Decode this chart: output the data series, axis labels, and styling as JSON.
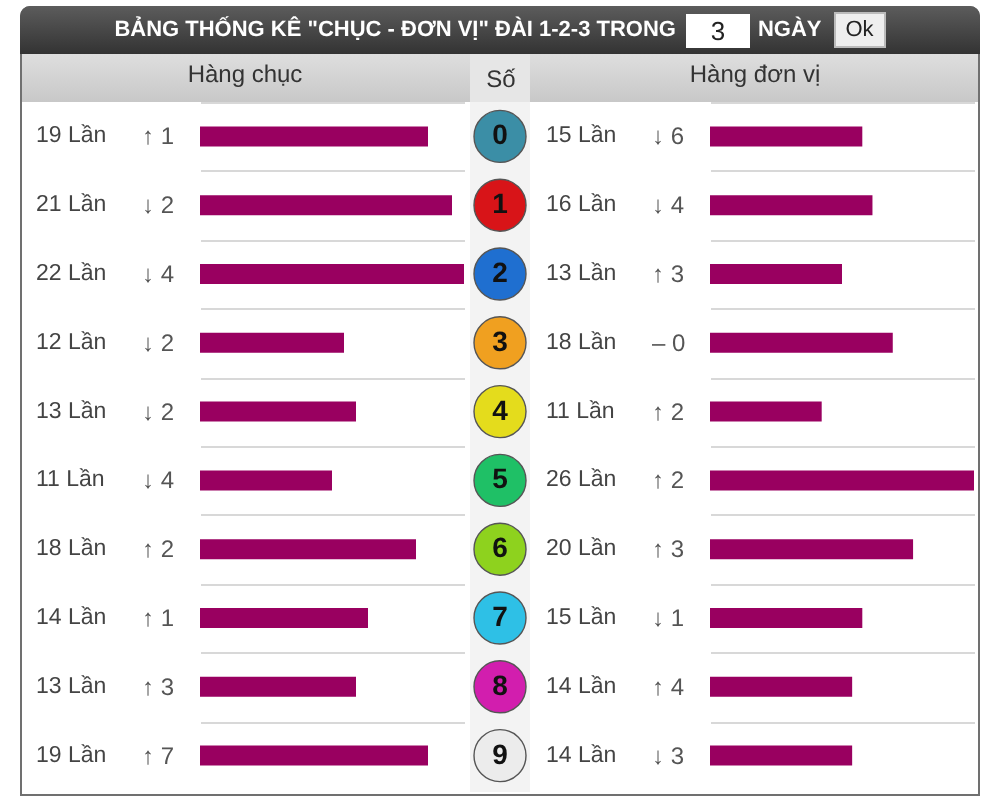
{
  "chart_data": [
    {
      "type": "other",
      "title": "BẢNG THỐNG KÊ \"CHỤC - ĐƠN VỊ\" ĐÀI 1-2-3 TRONG",
      "annotations": [
        "3",
        "NGÀY",
        "Ok"
      ]
    },
    {
      "type": "bar",
      "orientation": "horizontal",
      "title": "Hàng chục",
      "categories": [
        "0",
        "1",
        "2",
        "3",
        "4",
        "5",
        "6",
        "7",
        "8",
        "9"
      ],
      "values": [
        19,
        21,
        22,
        12,
        13,
        11,
        18,
        14,
        13,
        19
      ],
      "value_labels": [
        "19 Lần",
        "21 Lần",
        "22 Lần",
        "12 Lần",
        "13 Lần",
        "11 Lần",
        "18 Lần",
        "14 Lần",
        "13 Lần",
        "19 Lần"
      ],
      "color": "#990060",
      "annotations": [
        "↑ 1",
        "↓ 2",
        "↓ 4",
        "↓ 2",
        "↓ 2",
        "↓ 4",
        "↑ 2",
        "↑ 1",
        "↑ 3",
        "↑ 7"
      ],
      "grid": "y",
      "tick_labels": false
    },
    {
      "type": "bar",
      "orientation": "horizontal",
      "title": "Hàng đơn vị",
      "ylabel": "Số",
      "categories": [
        "0",
        "1",
        "2",
        "3",
        "4",
        "5",
        "6",
        "7",
        "8",
        "9"
      ],
      "values": [
        15,
        16,
        13,
        18,
        11,
        26,
        20,
        15,
        14,
        14
      ],
      "value_labels": [
        "15 Lần",
        "16 Lần",
        "13 Lần",
        "18 Lần",
        "11 Lần",
        "26 Lần",
        "20 Lần",
        "15 Lần",
        "14 Lần",
        "14 Lần"
      ],
      "color": "#990060",
      "annotations": [
        "↓ 6",
        "↓ 4",
        "↑ 3",
        "– 0",
        "↑ 2",
        "↑ 2",
        "↑ 3",
        "↓ 1",
        "↑ 4",
        "↓ 3"
      ],
      "grid": "y",
      "tick_labels": "y"
    }
  ]
}
